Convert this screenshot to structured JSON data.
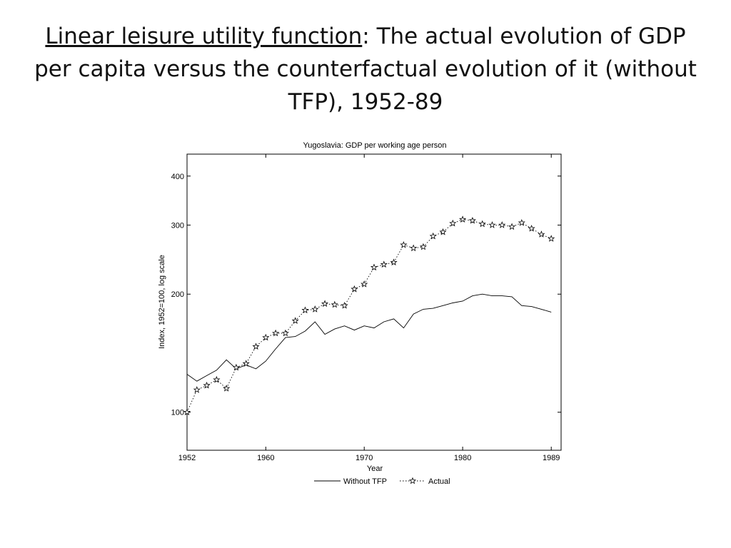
{
  "slide": {
    "title_underlined": "Linear leisure utility function",
    "title_rest": ": The actual evolution of GDP per capita versus the counterfactual evolution of it (without TFP), 1952-89"
  },
  "chart_data": {
    "type": "line",
    "title": "Yugoslavia: GDP per working age person",
    "xlabel": "Year",
    "ylabel": "Index, 1952=100, log scale",
    "log_scale_y": true,
    "xlim": [
      1952,
      1990
    ],
    "ylim": [
      80,
      455
    ],
    "x_ticks": [
      1952,
      1960,
      1970,
      1980,
      1989
    ],
    "y_ticks": [
      100,
      200,
      300,
      400
    ],
    "grid": false,
    "legend_position": "bottom-center",
    "x": [
      1952,
      1953,
      1954,
      1955,
      1956,
      1957,
      1958,
      1959,
      1960,
      1961,
      1962,
      1963,
      1964,
      1965,
      1966,
      1967,
      1968,
      1969,
      1970,
      1971,
      1972,
      1973,
      1974,
      1975,
      1976,
      1977,
      1978,
      1979,
      1980,
      1981,
      1982,
      1983,
      1984,
      1985,
      1986,
      1987,
      1988,
      1989
    ],
    "series": [
      {
        "name": "Without TFP",
        "style": "solid",
        "values": [
          125,
          120,
          124,
          128,
          136,
          129,
          132,
          129,
          135,
          145,
          155,
          156,
          161,
          170,
          158,
          163,
          166,
          162,
          166,
          164,
          170,
          173,
          164,
          178,
          183,
          184,
          187,
          190,
          192,
          198,
          200,
          198,
          198,
          197,
          187,
          186,
          183,
          180
        ]
      },
      {
        "name": "Actual",
        "style": "dotted-star",
        "values": [
          100,
          114,
          117,
          121,
          115,
          130,
          133,
          147,
          155,
          159,
          159,
          171,
          182,
          183,
          189,
          188,
          187,
          206,
          212,
          234,
          238,
          241,
          267,
          262,
          264,
          281,
          288,
          303,
          310,
          308,
          302,
          300,
          300,
          297,
          304,
          294,
          284,
          277
        ]
      }
    ]
  }
}
